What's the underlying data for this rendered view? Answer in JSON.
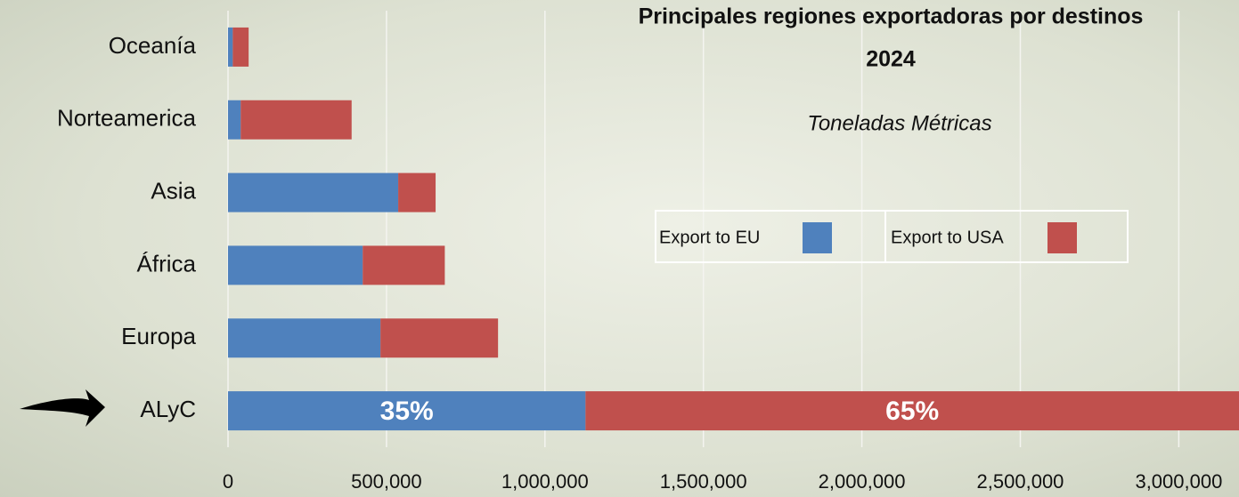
{
  "chart_data": {
    "type": "stacked_barh",
    "title_lines": [
      "Principales regiones exportadoras por destinos",
      "2024"
    ],
    "subtitle": "Toneladas Métricas",
    "categories": [
      "Oceanía",
      "Norteamerica",
      "Asia",
      "África",
      "Europa",
      "ALyC"
    ],
    "series": [
      {
        "name": "Export to EU",
        "color": "#4f81bd",
        "values": [
          15000,
          40000,
          537000,
          425000,
          481000,
          1128000
        ]
      },
      {
        "name": "Export to USA",
        "color": "#c0504d",
        "values": [
          50000,
          350000,
          118000,
          259000,
          371000,
          2095000
        ]
      }
    ],
    "annotations": [
      "35%",
      "65%"
    ],
    "xlim": [
      0,
      3190000
    ],
    "xticks": [
      {
        "value": 0,
        "label": "0"
      },
      {
        "value": 500000,
        "label": "500,000"
      },
      {
        "value": 1000000,
        "label": "1,000,000"
      },
      {
        "value": 1500000,
        "label": "1,500,000"
      },
      {
        "value": 2000000,
        "label": "2,000,000"
      },
      {
        "value": 2500000,
        "label": "2,500,000"
      },
      {
        "value": 3000000,
        "label": "3,000,000"
      }
    ],
    "grid": true
  }
}
